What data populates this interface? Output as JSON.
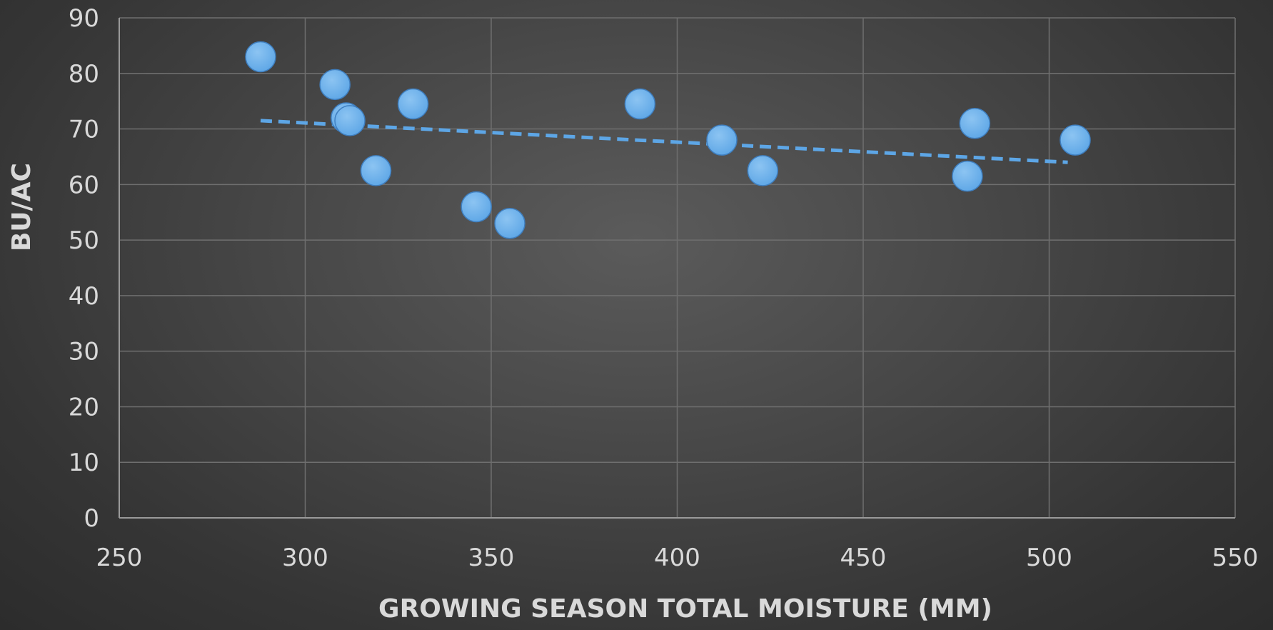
{
  "chart_data": {
    "type": "scatter",
    "title": "",
    "xlabel": "GROWING SEASON TOTAL MOISTURE (MM)",
    "ylabel": "BU/AC",
    "xlim": [
      250,
      550
    ],
    "ylim": [
      0,
      90
    ],
    "x_ticks": [
      "250",
      "300",
      "350",
      "400",
      "450",
      "500",
      "550"
    ],
    "y_ticks": [
      "0",
      "10",
      "20",
      "30",
      "40",
      "50",
      "60",
      "70",
      "80",
      "90"
    ],
    "grid": true,
    "legend": "none",
    "series": [
      {
        "points": [
          {
            "x": 288,
            "y": 83
          },
          {
            "x": 308,
            "y": 78
          },
          {
            "x": 311,
            "y": 72
          },
          {
            "x": 312,
            "y": 71.5
          },
          {
            "x": 319,
            "y": 62.5
          },
          {
            "x": 329,
            "y": 74.5
          },
          {
            "x": 346,
            "y": 56
          },
          {
            "x": 355,
            "y": 53
          },
          {
            "x": 390,
            "y": 74.5
          },
          {
            "x": 412,
            "y": 68
          },
          {
            "x": 423,
            "y": 62.5
          },
          {
            "x": 478,
            "y": 61.5
          },
          {
            "x": 480,
            "y": 71
          },
          {
            "x": 507,
            "y": 68
          }
        ]
      }
    ],
    "trendline": {
      "type": "linear",
      "x": [
        288,
        505
      ],
      "y": [
        71.5,
        64
      ]
    },
    "colors": {
      "point_fill": "#5da6e6",
      "trendline": "#5da6e6"
    }
  }
}
